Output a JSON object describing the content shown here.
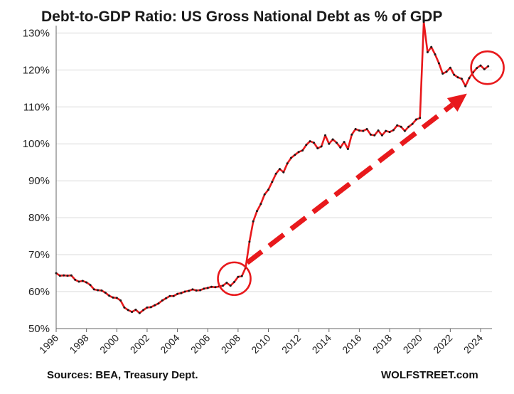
{
  "chart_data": {
    "type": "line",
    "title": "Debt-to-GDP Ratio: US Gross National Debt as % of GDP",
    "source": "Sources: BEA, Treasury Dept.",
    "brand": "WOLFSTREET.com",
    "xlabel": "",
    "ylabel": "",
    "xlim": [
      1996,
      2024.75
    ],
    "ylim": [
      50,
      132
    ],
    "y_ticks": [
      50,
      60,
      70,
      80,
      90,
      100,
      110,
      120,
      130
    ],
    "y_tick_labels": [
      "50%",
      "60%",
      "70%",
      "80%",
      "90%",
      "100%",
      "110%",
      "120%",
      "130%"
    ],
    "x_ticks": [
      1996,
      1998,
      2000,
      2002,
      2004,
      2006,
      2008,
      2010,
      2012,
      2014,
      2016,
      2018,
      2020,
      2022,
      2024
    ],
    "x_tick_labels": [
      "1996",
      "1998",
      "2000",
      "2002",
      "2004",
      "2006",
      "2008",
      "2010",
      "2012",
      "2014",
      "2016",
      "2018",
      "2020",
      "2022",
      "2024"
    ],
    "grid": "horizontal",
    "legend": "none",
    "colors": {
      "line": "#e8191c",
      "marker": "#1a1a1a",
      "arrow": "#e8191c",
      "circle": "#e8191c",
      "grid": "#d9d9d9"
    },
    "series": [
      {
        "x": [
          1996.0,
          1996.25,
          1996.5,
          1996.75,
          1997.0,
          1997.25,
          1997.5,
          1997.75,
          1998.0,
          1998.25,
          1998.5,
          1998.75,
          1999.0,
          1999.25,
          1999.5,
          1999.75,
          2000.0,
          2000.25,
          2000.5,
          2000.75,
          2001.0,
          2001.25,
          2001.5,
          2001.75,
          2002.0,
          2002.25,
          2002.5,
          2002.75,
          2003.0,
          2003.25,
          2003.5,
          2003.75,
          2004.0,
          2004.25,
          2004.5,
          2004.75,
          2005.0,
          2005.25,
          2005.5,
          2005.75,
          2006.0,
          2006.25,
          2006.5,
          2006.75,
          2007.0,
          2007.25,
          2007.5,
          2007.75,
          2008.0,
          2008.25,
          2008.5,
          2008.75,
          2009.0,
          2009.25,
          2009.5,
          2009.75,
          2010.0,
          2010.25,
          2010.5,
          2010.75,
          2011.0,
          2011.25,
          2011.5,
          2011.75,
          2012.0,
          2012.25,
          2012.5,
          2012.75,
          2013.0,
          2013.25,
          2013.5,
          2013.75,
          2014.0,
          2014.25,
          2014.5,
          2014.75,
          2015.0,
          2015.25,
          2015.5,
          2015.75,
          2016.0,
          2016.25,
          2016.5,
          2016.75,
          2017.0,
          2017.25,
          2017.5,
          2017.75,
          2018.0,
          2018.25,
          2018.5,
          2018.75,
          2019.0,
          2019.25,
          2019.5,
          2019.75,
          2020.0,
          2020.25,
          2020.5,
          2020.75,
          2021.0,
          2021.25,
          2021.5,
          2021.75,
          2022.0,
          2022.25,
          2022.5,
          2022.75,
          2023.0,
          2023.25,
          2023.5,
          2023.75,
          2024.0,
          2024.25,
          2024.5
        ],
        "values": [
          65.0,
          64.3,
          64.4,
          64.3,
          64.4,
          63.2,
          62.7,
          62.9,
          62.5,
          61.8,
          60.6,
          60.4,
          60.3,
          59.7,
          58.9,
          58.4,
          58.3,
          57.6,
          55.7,
          55.0,
          54.5,
          55.1,
          54.2,
          55.0,
          55.7,
          55.8,
          56.3,
          56.8,
          57.6,
          58.2,
          58.8,
          58.8,
          59.4,
          59.6,
          60.0,
          60.2,
          60.6,
          60.3,
          60.4,
          60.8,
          61.0,
          61.3,
          61.2,
          61.4,
          61.6,
          62.4,
          61.6,
          62.6,
          64.0,
          64.2,
          66.5,
          73.5,
          79.0,
          81.8,
          83.7,
          86.3,
          87.6,
          89.7,
          91.9,
          93.2,
          92.3,
          94.7,
          96.2,
          97.0,
          97.8,
          98.2,
          99.7,
          100.7,
          100.3,
          98.8,
          99.3,
          102.3,
          100.0,
          101.2,
          100.3,
          99.0,
          100.5,
          98.6,
          102.5,
          104.0,
          103.6,
          103.5,
          104.0,
          102.5,
          102.3,
          103.6,
          102.3,
          103.5,
          103.2,
          103.7,
          105.0,
          104.6,
          103.5,
          104.6,
          105.4,
          106.6,
          107.0,
          133.0,
          124.8,
          126.2,
          124.2,
          121.8,
          119.0,
          119.5,
          120.6,
          118.7,
          118.0,
          117.6,
          115.6,
          117.8,
          119.3,
          120.5,
          121.2,
          120.2,
          121.0
        ]
      }
    ],
    "annotations": [
      {
        "type": "circle",
        "x": 2007.75,
        "y": 63.5
      },
      {
        "type": "circle",
        "x": 2024.45,
        "y": 120.6
      },
      {
        "type": "dashed-arrow",
        "from": [
          2008.6,
          67.8
        ],
        "to": [
          2023.1,
          113.6
        ]
      }
    ]
  }
}
